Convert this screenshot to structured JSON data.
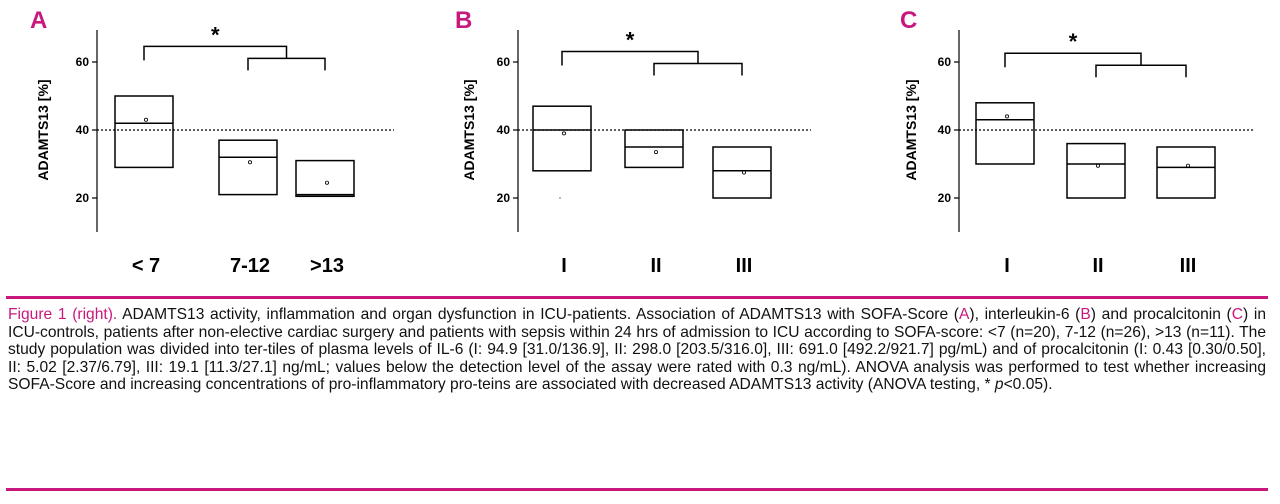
{
  "chart_data": [
    {
      "type": "box",
      "panel_label": "A",
      "ylabel": "ADAMTS13 [%]",
      "ylim": [
        10,
        70
      ],
      "yticks": [
        20,
        40,
        60
      ],
      "reference_line": 40,
      "categories": [
        "< 7",
        "7-12",
        ">13"
      ],
      "boxes": [
        {
          "q1": 29,
          "median": 42,
          "q3": 50,
          "mean": 43
        },
        {
          "q1": 21,
          "median": 32,
          "q3": 37,
          "mean": 30.5
        },
        {
          "q1": 20.5,
          "median": 21,
          "q3": 31,
          "mean": 24.5
        }
      ],
      "significance": {
        "label": "*",
        "from_group": 0,
        "to_groups": [
          1,
          2
        ],
        "bracket_y": 64,
        "inner_y": 62.5
      }
    },
    {
      "type": "box",
      "panel_label": "B",
      "ylabel": "ADAMTS13 [%]",
      "ylim": [
        10,
        70
      ],
      "yticks": [
        20,
        40,
        60
      ],
      "reference_line": 40,
      "categories": [
        "I",
        "II",
        "III"
      ],
      "boxes": [
        {
          "q1": 28,
          "median": 40,
          "q3": 47,
          "mean": 39,
          "outlier": 20
        },
        {
          "q1": 29,
          "median": 35,
          "q3": 40,
          "mean": 33.5
        },
        {
          "q1": 20,
          "median": 28,
          "q3": 35,
          "mean": 27.5
        }
      ],
      "significance": {
        "label": "*",
        "from_group": 0,
        "to_groups": [
          1,
          2
        ],
        "bracket_y": 60,
        "inner_y": 62.5
      }
    },
    {
      "type": "box",
      "panel_label": "C",
      "ylabel": "ADAMTS13 [%]",
      "ylim": [
        10,
        70
      ],
      "yticks": [
        20,
        40,
        60
      ],
      "reference_line": 40,
      "categories": [
        "I",
        "II",
        "III"
      ],
      "boxes": [
        {
          "q1": 30,
          "median": 43,
          "q3": 48,
          "mean": 44
        },
        {
          "q1": 20,
          "median": 30,
          "q3": 36,
          "mean": 29.5
        },
        {
          "q1": 20,
          "median": 29,
          "q3": 35,
          "mean": 29.5
        }
      ],
      "significance": {
        "label": "*",
        "from_group": 0,
        "to_groups": [
          1,
          2
        ],
        "bracket_y": 62,
        "inner_y": 60
      }
    }
  ],
  "caption": {
    "lead": "Figure 1 (right).",
    "s1": " ADAMTS13 activity, inflammation and organ dysfunction in ICU-patients. Association of ADAMTS13 with SOFA-Score (",
    "ref_a": "A",
    "s2": "), interleukin-6 (",
    "ref_b": "B",
    "s3": ") and procalcitonin (",
    "ref_c": "C",
    "s4": ") in ICU-controls, patients after non-elective cardiac surgery and patients with sepsis within 24 hrs of admission to ICU according to SOFA-score: <7 (n=20), 7-12 (n=26), >13 (n=11). The study population was divided into ter-tiles of plasma levels of IL-6 (I: 94.9 [31.0/136.9], II: 298.0 [203.5/316.0], III: 691.0 [492.2/921.7] pg/mL) and of procalcitonin (I: 0.43 [0.30/0.50], II: 5.02 [2.37/6.79], III: 19.1 [11.3/27.1] ng/mL; values below the detection level of the assay were rated with 0.3 ng/mL). ANOVA analysis was performed to test whether increasing SOFA-Score and increasing concentrations of pro-inflammatory pro-teins are associated with decreased ADAMTS13 activity (ANOVA testing, * ",
    "p_italic": "p",
    "s5": "<0.05)."
  },
  "colors": {
    "accent": "#c8187d",
    "ink": "#000000"
  }
}
